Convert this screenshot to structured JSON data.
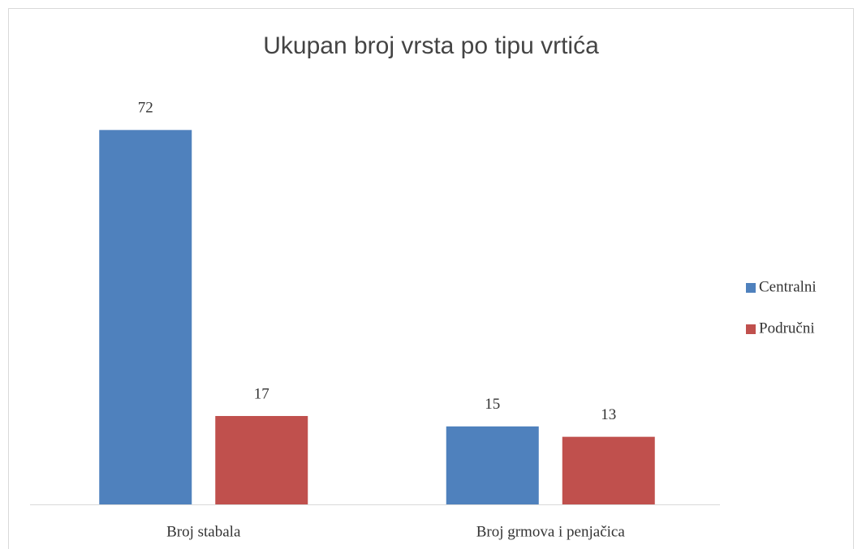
{
  "chart_data": {
    "type": "bar",
    "title": "Ukupan broj vrsta po tipu vrtića",
    "categories": [
      "Broj stabala",
      "Broj grmova i penjačica"
    ],
    "series": [
      {
        "name": "Centralni",
        "color": "#4f81bd",
        "values": [
          72,
          15
        ]
      },
      {
        "name": "Područni",
        "color": "#c0504d",
        "values": [
          17,
          13
        ]
      }
    ],
    "ylim": [
      0,
      80
    ],
    "legend": "right"
  }
}
